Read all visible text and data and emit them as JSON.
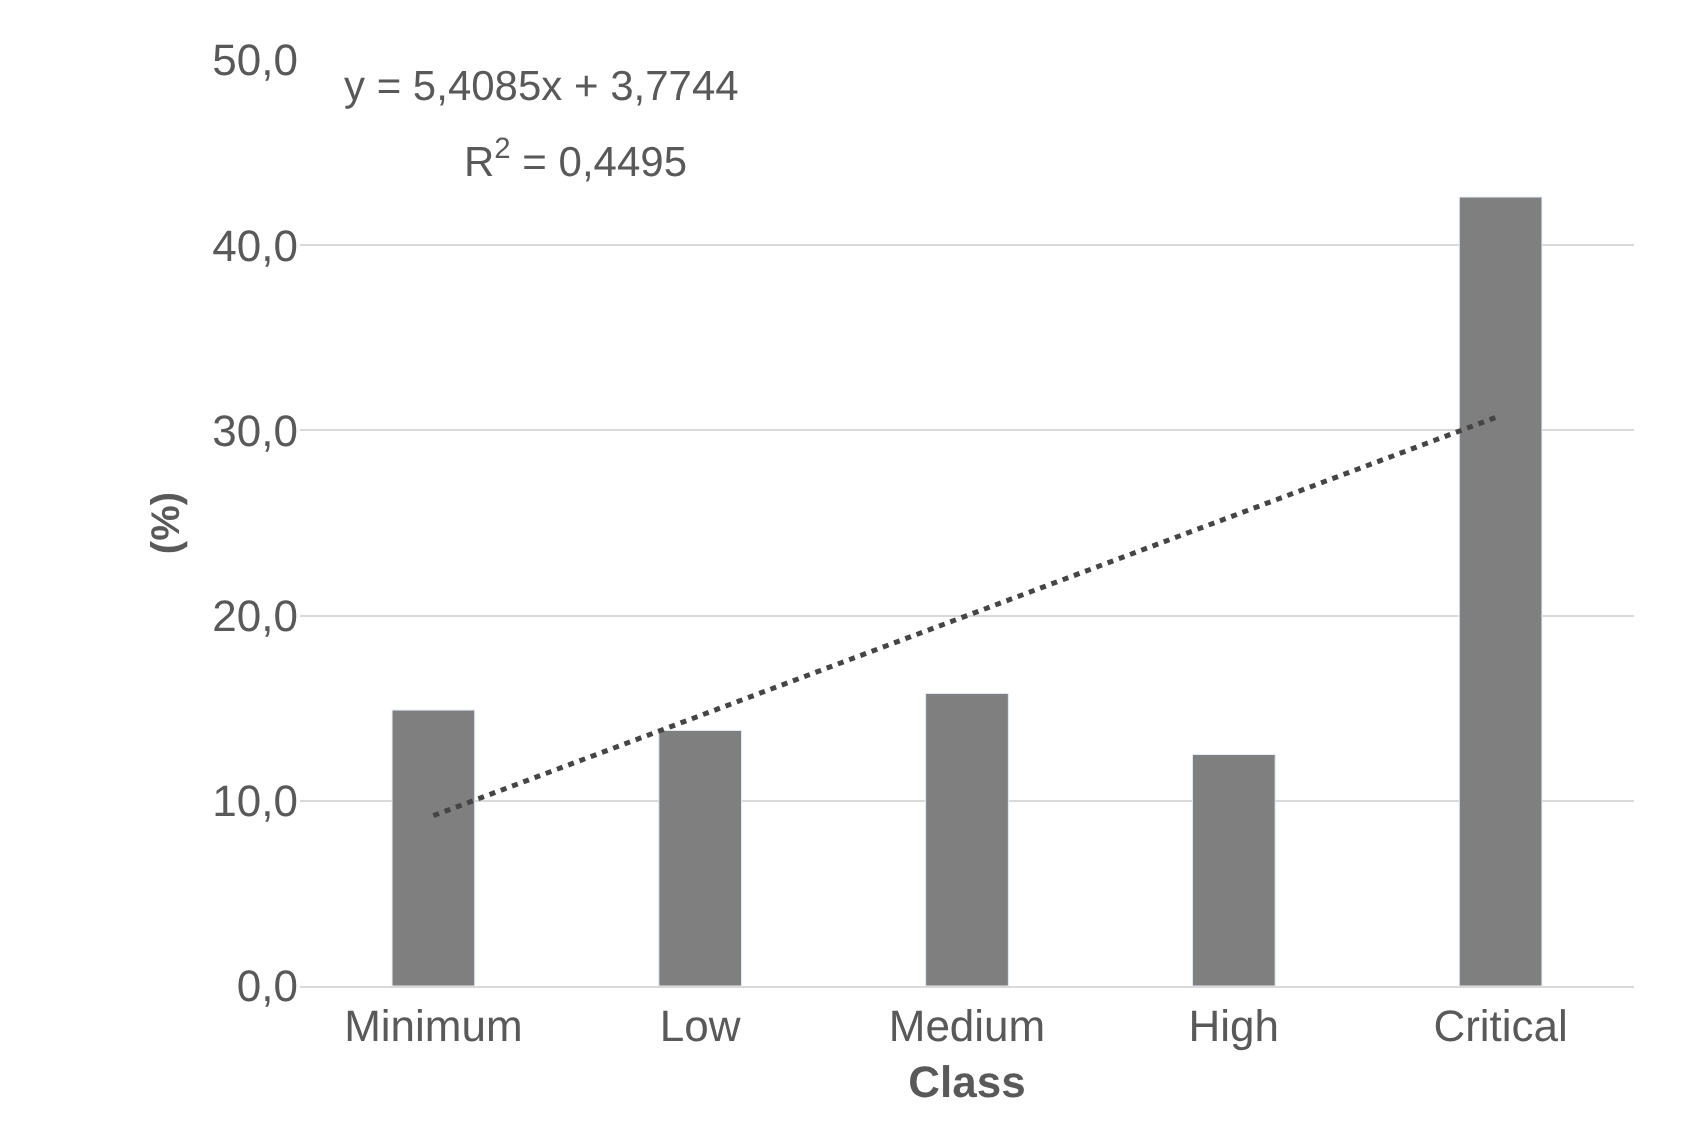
{
  "chart_data": {
    "type": "bar",
    "categories": [
      "Minimum",
      "Low",
      "Medium",
      "High",
      "Critical"
    ],
    "series": [
      {
        "color": "#7f7f7f",
        "values": [
          14.9,
          13.8,
          15.8,
          12.5,
          42.6
        ]
      },
      {
        "type": "line",
        "color": "#454545",
        "line_style": "dotted",
        "marker": "none",
        "values": [
          9.2,
          14.6,
          20.0,
          25.4,
          30.8
        ]
      }
    ],
    "xlabel": "Class",
    "ylabel": "(%)",
    "ylim": [
      0,
      50
    ],
    "yticks": [
      {
        "value": 0,
        "label": "0,0"
      },
      {
        "value": 10,
        "label": "10,0"
      },
      {
        "value": 20,
        "label": "20,0"
      },
      {
        "value": 30,
        "label": "30,0"
      },
      {
        "value": 40,
        "label": "40,0"
      },
      {
        "value": 50,
        "label": "50,0"
      }
    ],
    "annotations": [
      "y = 5,4085x + 3,7744",
      "R$^{2}$ = 0,4495"
    ],
    "grid": "y"
  }
}
